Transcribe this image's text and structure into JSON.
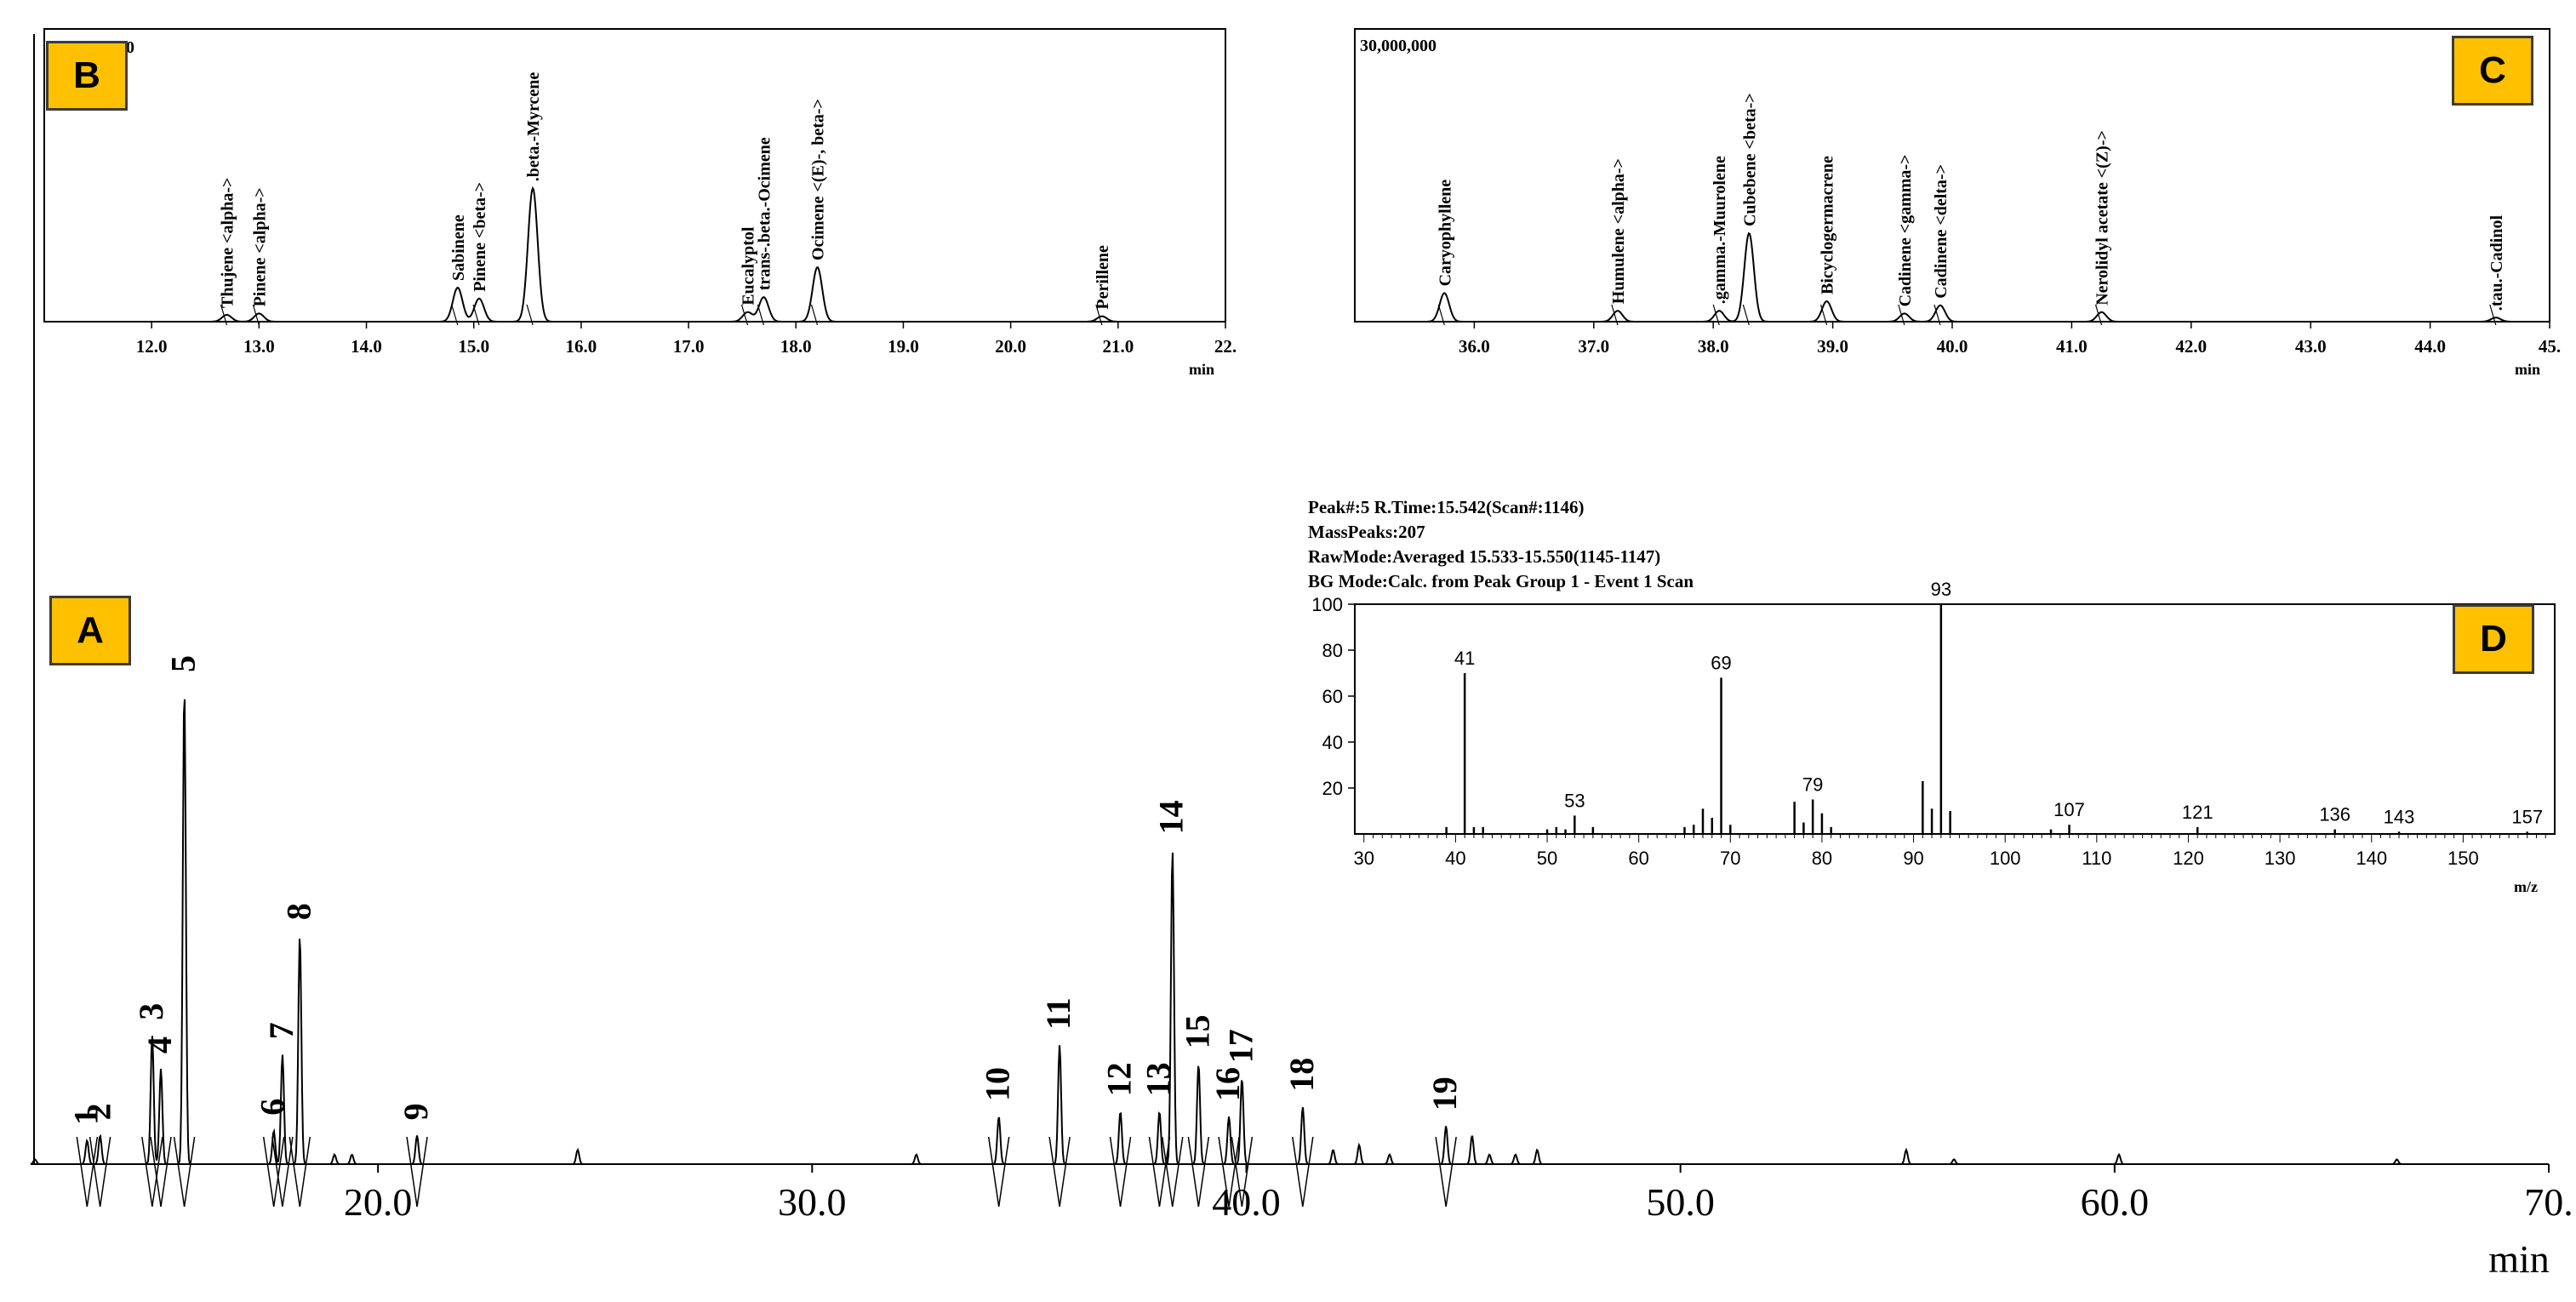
{
  "chart_data": [
    {
      "panel": "A",
      "type": "line",
      "xlim": [
        12.0,
        70.0
      ],
      "xticks": [
        "20.0",
        "30.0",
        "40.0",
        "50.0",
        "60.0",
        "70."
      ],
      "xlabel": "min",
      "peaks": [
        {
          "label": "1",
          "x": 13.3,
          "y": 0.05
        },
        {
          "label": "2",
          "x": 13.6,
          "y": 0.06
        },
        {
          "label": "3",
          "x": 14.8,
          "y": 0.27
        },
        {
          "label": "4",
          "x": 15.0,
          "y": 0.2
        },
        {
          "label": "5",
          "x": 15.54,
          "y": 1.0
        },
        {
          "label": "6",
          "x": 17.6,
          "y": 0.07
        },
        {
          "label": "7",
          "x": 17.8,
          "y": 0.23
        },
        {
          "label": "8",
          "x": 18.2,
          "y": 0.48
        },
        {
          "label": "9",
          "x": 20.9,
          "y": 0.06
        },
        {
          "label": "10",
          "x": 34.3,
          "y": 0.1
        },
        {
          "label": "11",
          "x": 35.7,
          "y": 0.25
        },
        {
          "label": "12",
          "x": 37.1,
          "y": 0.11
        },
        {
          "label": "13",
          "x": 38.0,
          "y": 0.11
        },
        {
          "label": "14",
          "x": 38.3,
          "y": 0.66
        },
        {
          "label": "15",
          "x": 38.9,
          "y": 0.21
        },
        {
          "label": "16",
          "x": 39.6,
          "y": 0.1
        },
        {
          "label": "17",
          "x": 39.9,
          "y": 0.18
        },
        {
          "label": "18",
          "x": 41.3,
          "y": 0.12
        },
        {
          "label": "19",
          "x": 44.6,
          "y": 0.08
        }
      ],
      "minor_peaks": [
        {
          "x": 12.1,
          "y": 0.01
        },
        {
          "x": 19.0,
          "y": 0.02
        },
        {
          "x": 19.4,
          "y": 0.02
        },
        {
          "x": 24.6,
          "y": 0.03
        },
        {
          "x": 32.4,
          "y": 0.02
        },
        {
          "x": 42.0,
          "y": 0.03
        },
        {
          "x": 42.6,
          "y": 0.04
        },
        {
          "x": 43.3,
          "y": 0.02
        },
        {
          "x": 45.2,
          "y": 0.06
        },
        {
          "x": 45.6,
          "y": 0.02
        },
        {
          "x": 46.2,
          "y": 0.02
        },
        {
          "x": 46.7,
          "y": 0.03
        },
        {
          "x": 55.2,
          "y": 0.03
        },
        {
          "x": 56.3,
          "y": 0.01
        },
        {
          "x": 60.1,
          "y": 0.02
        },
        {
          "x": 66.5,
          "y": 0.01
        }
      ]
    },
    {
      "panel": "B",
      "type": "line",
      "xlim": [
        11.0,
        22.0
      ],
      "xticks": [
        "12.0",
        "13.0",
        "14.0",
        "15.0",
        "16.0",
        "17.0",
        "18.0",
        "19.0",
        "20.0",
        "21.0",
        "22."
      ],
      "xlabel": "min",
      "ylabel_top": "00",
      "peaks": [
        {
          "name": "Thujene <alpha->",
          "x": 12.7,
          "y": 0.05
        },
        {
          "name": "Pinene <alpha->",
          "x": 13.0,
          "y": 0.06
        },
        {
          "name": "Sabinene",
          "x": 14.85,
          "y": 0.25
        },
        {
          "name": "Pinene <beta->",
          "x": 15.05,
          "y": 0.17
        },
        {
          "name": ".beta.-Myrcene",
          "x": 15.55,
          "y": 0.98
        },
        {
          "name": "Eucalyptol",
          "x": 17.55,
          "y": 0.07
        },
        {
          "name": "trans-.beta.-Ocimene",
          "x": 17.7,
          "y": 0.18
        },
        {
          "name": "Ocimene <(E)-, beta->",
          "x": 18.2,
          "y": 0.4
        },
        {
          "name": "Perillene",
          "x": 20.85,
          "y": 0.04
        }
      ]
    },
    {
      "panel": "C",
      "type": "line",
      "xlim": [
        35.0,
        45.0
      ],
      "xticks": [
        "36.0",
        "37.0",
        "38.0",
        "39.0",
        "40.0",
        "41.0",
        "42.0",
        "43.0",
        "44.0",
        "45."
      ],
      "xlabel": "min",
      "ylabel_top": "30,000,000",
      "peaks": [
        {
          "name": "Caryophyllene",
          "x": 35.75,
          "y": 0.21
        },
        {
          "name": "Humulene <alpha->",
          "x": 37.2,
          "y": 0.08
        },
        {
          "name": ".gamma.-Muurolene",
          "x": 38.05,
          "y": 0.08
        },
        {
          "name": "Cubebene <beta->",
          "x": 38.3,
          "y": 0.65
        },
        {
          "name": "Bicyclogermacrene",
          "x": 38.95,
          "y": 0.15
        },
        {
          "name": "Cadinene <gamma->",
          "x": 39.6,
          "y": 0.06
        },
        {
          "name": "Cadinene <delta->",
          "x": 39.9,
          "y": 0.12
        },
        {
          "name": "Nerolidyl acetate <(Z)->",
          "x": 41.25,
          "y": 0.07
        },
        {
          "name": ".tau.-Cadinol",
          "x": 44.55,
          "y": 0.03
        }
      ]
    },
    {
      "panel": "D",
      "type": "bar",
      "title_lines": [
        "Peak#:5   R.Time:15.542(Scan#:1146)",
        "MassPeaks:207",
        "RawMode:Averaged 15.533-15.550(1145-1147)",
        "BG Mode:Calc. from Peak Group 1 - Event 1 Scan"
      ],
      "xlim": [
        29,
        160
      ],
      "ylim": [
        0,
        100
      ],
      "yticks": [
        "20",
        "40",
        "60",
        "80",
        "100"
      ],
      "xticks": [
        "30",
        "40",
        "50",
        "60",
        "70",
        "80",
        "90",
        "100",
        "110",
        "120",
        "130",
        "140",
        "150"
      ],
      "xlabel": "m/z",
      "bars": [
        {
          "mz": 39,
          "i": 3
        },
        {
          "mz": 41,
          "i": 70,
          "label": "41"
        },
        {
          "mz": 42,
          "i": 3
        },
        {
          "mz": 43,
          "i": 3
        },
        {
          "mz": 50,
          "i": 2
        },
        {
          "mz": 51,
          "i": 3
        },
        {
          "mz": 52,
          "i": 2
        },
        {
          "mz": 53,
          "i": 8,
          "label": "53"
        },
        {
          "mz": 55,
          "i": 3
        },
        {
          "mz": 65,
          "i": 3
        },
        {
          "mz": 66,
          "i": 4
        },
        {
          "mz": 67,
          "i": 11
        },
        {
          "mz": 68,
          "i": 7
        },
        {
          "mz": 69,
          "i": 68,
          "label": "69"
        },
        {
          "mz": 70,
          "i": 4
        },
        {
          "mz": 77,
          "i": 14
        },
        {
          "mz": 78,
          "i": 5
        },
        {
          "mz": 79,
          "i": 15,
          "label": "79"
        },
        {
          "mz": 80,
          "i": 9
        },
        {
          "mz": 81,
          "i": 3
        },
        {
          "mz": 91,
          "i": 23
        },
        {
          "mz": 92,
          "i": 11
        },
        {
          "mz": 93,
          "i": 100,
          "label": "93"
        },
        {
          "mz": 94,
          "i": 10
        },
        {
          "mz": 105,
          "i": 2
        },
        {
          "mz": 107,
          "i": 4,
          "label": "107"
        },
        {
          "mz": 121,
          "i": 3,
          "label": "121"
        },
        {
          "mz": 136,
          "i": 2,
          "label": "136"
        },
        {
          "mz": 143,
          "i": 1,
          "label": "143"
        },
        {
          "mz": 157,
          "i": 1,
          "label": "157"
        }
      ]
    }
  ],
  "panel_labels": {
    "a": "A",
    "b": "B",
    "c": "C",
    "d": "D"
  },
  "colors": {
    "panel_label_bg": "#FFC000",
    "trace": "#000000"
  }
}
